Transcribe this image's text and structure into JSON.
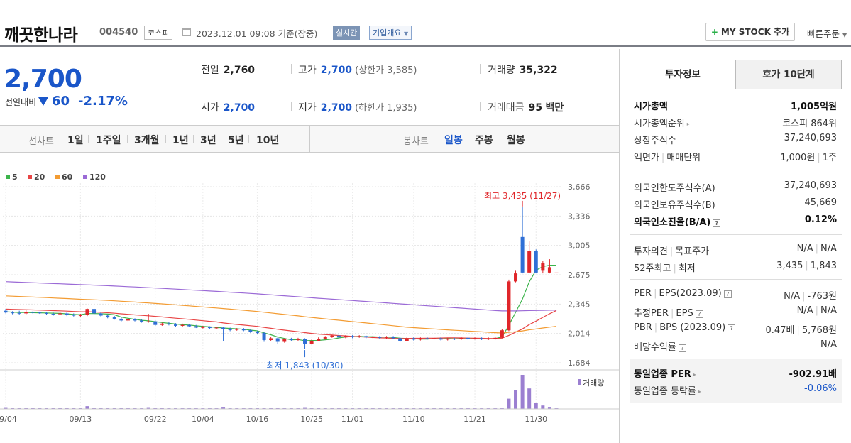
{
  "stock": {
    "name": "깨끗한나라",
    "code": "004540",
    "market": "코스피",
    "datetime": "2023.12.01 09:08",
    "basis": "기준(장중)",
    "realtime": "실시간",
    "corp_info": "기업개요",
    "my_stock": "MY STOCK 추가",
    "quick_order": "빠른주문"
  },
  "summary": {
    "price": "2,700",
    "change_label": "전일대비",
    "change_value": "60",
    "change_pct": "-2.17%",
    "prev_label": "전일",
    "prev": "2,760",
    "high_label": "고가",
    "high": "2,700",
    "upper_limit": "(상한가 3,585)",
    "volume_label": "거래량",
    "volume": "35,322",
    "open_label": "시가",
    "open": "2,700",
    "low_label": "저가",
    "low": "2,700",
    "lower_limit": "(하한가 1,935)",
    "amount_label": "거래대금",
    "amount": "95",
    "amount_unit": "백만"
  },
  "periods": {
    "line_label": "선차트",
    "line_items": [
      "1일",
      "1주일",
      "3개월",
      "1년",
      "3년",
      "5년",
      "10년"
    ],
    "candle_label": "봉차트",
    "candle_items": [
      "일봉",
      "주봉",
      "월봉"
    ],
    "candle_active": "일봉"
  },
  "chart_data": {
    "type": "candlestick",
    "legend": [
      {
        "name": "5",
        "color": "#3cb44b"
      },
      {
        "name": "20",
        "color": "#e84545"
      },
      {
        "name": "60",
        "color": "#f39c33"
      },
      {
        "name": "120",
        "color": "#9b6ad6"
      }
    ],
    "y_ticks": [
      "3,666",
      "3,336",
      "3,005",
      "2,675",
      "2,345",
      "2,014",
      "1,684"
    ],
    "ylim": [
      1684,
      3666
    ],
    "x_ticks": [
      "09/04",
      "09/13",
      "09/22",
      "10/04",
      "10/16",
      "10/25",
      "11/01",
      "11/10",
      "11/21",
      "11/30"
    ],
    "annotations": {
      "high_text": "최고 3,435 (11/27)",
      "low_text": "최저 1,843 (10/30)"
    },
    "volume_label": "거래량",
    "candles": [
      {
        "o": 2270,
        "c": 2250,
        "h": 2290,
        "l": 2240
      },
      {
        "o": 2250,
        "c": 2245,
        "h": 2265,
        "l": 2230
      },
      {
        "o": 2245,
        "c": 2240,
        "h": 2270,
        "l": 2225
      },
      {
        "o": 2240,
        "c": 2255,
        "h": 2275,
        "l": 2230
      },
      {
        "o": 2255,
        "c": 2250,
        "h": 2265,
        "l": 2235
      },
      {
        "o": 2250,
        "c": 2245,
        "h": 2260,
        "l": 2235
      },
      {
        "o": 2245,
        "c": 2235,
        "h": 2255,
        "l": 2225
      },
      {
        "o": 2235,
        "c": 2230,
        "h": 2250,
        "l": 2215
      },
      {
        "o": 2230,
        "c": 2240,
        "h": 2255,
        "l": 2220
      },
      {
        "o": 2240,
        "c": 2225,
        "h": 2250,
        "l": 2210
      },
      {
        "o": 2225,
        "c": 2215,
        "h": 2240,
        "l": 2205
      },
      {
        "o": 2215,
        "c": 2220,
        "h": 2235,
        "l": 2200
      },
      {
        "o": 2220,
        "c": 2290,
        "h": 2295,
        "l": 2210
      },
      {
        "o": 2290,
        "c": 2240,
        "h": 2295,
        "l": 2225
      },
      {
        "o": 2240,
        "c": 2215,
        "h": 2250,
        "l": 2205
      },
      {
        "o": 2215,
        "c": 2195,
        "h": 2230,
        "l": 2185
      },
      {
        "o": 2195,
        "c": 2180,
        "h": 2210,
        "l": 2170
      },
      {
        "o": 2180,
        "c": 2160,
        "h": 2195,
        "l": 2150
      },
      {
        "o": 2160,
        "c": 2175,
        "h": 2190,
        "l": 2150
      },
      {
        "o": 2175,
        "c": 2160,
        "h": 2185,
        "l": 2150
      },
      {
        "o": 2160,
        "c": 2140,
        "h": 2175,
        "l": 2135
      },
      {
        "o": 2140,
        "c": 2150,
        "h": 2235,
        "l": 2135
      },
      {
        "o": 2150,
        "c": 2110,
        "h": 2160,
        "l": 2100
      },
      {
        "o": 2110,
        "c": 2125,
        "h": 2135,
        "l": 2100
      },
      {
        "o": 2125,
        "c": 2115,
        "h": 2140,
        "l": 2105
      },
      {
        "o": 2115,
        "c": 2100,
        "h": 2130,
        "l": 2090
      },
      {
        "o": 2100,
        "c": 2110,
        "h": 2125,
        "l": 2090
      },
      {
        "o": 2110,
        "c": 2095,
        "h": 2120,
        "l": 2085
      },
      {
        "o": 2095,
        "c": 2080,
        "h": 2110,
        "l": 2075
      },
      {
        "o": 2080,
        "c": 2085,
        "h": 2100,
        "l": 2070
      },
      {
        "o": 2085,
        "c": 2075,
        "h": 2095,
        "l": 2065
      },
      {
        "o": 2075,
        "c": 2080,
        "h": 2090,
        "l": 2060
      },
      {
        "o": 2080,
        "c": 2060,
        "h": 2090,
        "l": 1930
      },
      {
        "o": 2060,
        "c": 2055,
        "h": 2080,
        "l": 2040
      },
      {
        "o": 2055,
        "c": 2065,
        "h": 2075,
        "l": 2045
      },
      {
        "o": 2065,
        "c": 2050,
        "h": 2075,
        "l": 2040
      },
      {
        "o": 2050,
        "c": 2030,
        "h": 2065,
        "l": 2020
      },
      {
        "o": 2030,
        "c": 2020,
        "h": 2045,
        "l": 2005
      },
      {
        "o": 2020,
        "c": 1940,
        "h": 2030,
        "l": 1920
      },
      {
        "o": 1940,
        "c": 1960,
        "h": 1975,
        "l": 1930
      },
      {
        "o": 1960,
        "c": 1920,
        "h": 1970,
        "l": 1900
      },
      {
        "o": 1920,
        "c": 1950,
        "h": 1960,
        "l": 1910
      },
      {
        "o": 1950,
        "c": 1940,
        "h": 1965,
        "l": 1925
      },
      {
        "o": 1940,
        "c": 1955,
        "h": 1965,
        "l": 1930
      },
      {
        "o": 1955,
        "c": 1900,
        "h": 1960,
        "l": 1843
      },
      {
        "o": 1900,
        "c": 1930,
        "h": 1945,
        "l": 1890
      },
      {
        "o": 1930,
        "c": 1955,
        "h": 1970,
        "l": 1925
      },
      {
        "o": 1955,
        "c": 1975,
        "h": 1985,
        "l": 1945
      },
      {
        "o": 1975,
        "c": 1990,
        "h": 2000,
        "l": 1965
      },
      {
        "o": 1990,
        "c": 1970,
        "h": 2020,
        "l": 1960
      },
      {
        "o": 1970,
        "c": 1985,
        "h": 1995,
        "l": 1960
      },
      {
        "o": 1985,
        "c": 1975,
        "h": 1995,
        "l": 1960
      },
      {
        "o": 1975,
        "c": 1985,
        "h": 1995,
        "l": 1965
      },
      {
        "o": 1985,
        "c": 1970,
        "h": 1990,
        "l": 1960
      },
      {
        "o": 1970,
        "c": 1975,
        "h": 1985,
        "l": 1960
      },
      {
        "o": 1975,
        "c": 1965,
        "h": 1985,
        "l": 1955
      },
      {
        "o": 1965,
        "c": 1975,
        "h": 1985,
        "l": 1955
      },
      {
        "o": 1975,
        "c": 1960,
        "h": 1985,
        "l": 1950
      },
      {
        "o": 1960,
        "c": 1930,
        "h": 1970,
        "l": 1920
      },
      {
        "o": 1930,
        "c": 1960,
        "h": 1970,
        "l": 1925
      },
      {
        "o": 1960,
        "c": 1945,
        "h": 1970,
        "l": 1935
      },
      {
        "o": 1945,
        "c": 1960,
        "h": 1970,
        "l": 1935
      },
      {
        "o": 1960,
        "c": 1955,
        "h": 1970,
        "l": 1945
      },
      {
        "o": 1955,
        "c": 1960,
        "h": 1970,
        "l": 1945
      },
      {
        "o": 1960,
        "c": 1945,
        "h": 1970,
        "l": 1935
      },
      {
        "o": 1945,
        "c": 1955,
        "h": 1965,
        "l": 1935
      },
      {
        "o": 1955,
        "c": 1950,
        "h": 1965,
        "l": 1940
      },
      {
        "o": 1950,
        "c": 1965,
        "h": 1975,
        "l": 1940
      },
      {
        "o": 1965,
        "c": 1950,
        "h": 1975,
        "l": 1940
      },
      {
        "o": 1950,
        "c": 1960,
        "h": 1970,
        "l": 1945
      },
      {
        "o": 1960,
        "c": 1950,
        "h": 1970,
        "l": 1940
      },
      {
        "o": 1950,
        "c": 1955,
        "h": 1970,
        "l": 1940
      },
      {
        "o": 1955,
        "c": 1965,
        "h": 1980,
        "l": 1945
      },
      {
        "o": 1965,
        "c": 2050,
        "h": 2060,
        "l": 1960
      },
      {
        "o": 2050,
        "c": 2600,
        "h": 2620,
        "l": 2040
      },
      {
        "o": 2600,
        "c": 2690,
        "h": 2720,
        "l": 2590
      },
      {
        "o": 3100,
        "c": 2700,
        "h": 3435,
        "l": 2690
      },
      {
        "o": 2700,
        "c": 2940,
        "h": 3050,
        "l": 2690
      },
      {
        "o": 2940,
        "c": 2700,
        "h": 2960,
        "l": 2690
      },
      {
        "o": 2720,
        "c": 2810,
        "h": 2830,
        "l": 2690
      },
      {
        "o": 2700,
        "c": 2760,
        "h": 2850,
        "l": 2690
      },
      {
        "o": 2700,
        "c": 2700,
        "h": 2700,
        "l": 2700
      }
    ],
    "volumes": [
      5,
      4,
      4,
      3,
      4,
      3,
      3,
      4,
      3,
      4,
      3,
      3,
      8,
      4,
      3,
      3,
      3,
      3,
      2,
      2,
      2,
      5,
      3,
      3,
      2,
      2,
      2,
      2,
      2,
      2,
      2,
      2,
      6,
      2,
      2,
      2,
      2,
      3,
      4,
      3,
      3,
      2,
      2,
      2,
      5,
      3,
      3,
      3,
      2,
      2,
      2,
      2,
      2,
      2,
      2,
      2,
      2,
      2,
      2,
      2,
      2,
      2,
      2,
      2,
      2,
      2,
      2,
      2,
      2,
      2,
      2,
      2,
      2,
      3,
      30,
      55,
      100,
      60,
      18,
      10,
      6,
      2
    ]
  },
  "right": {
    "tab1": "투자정보",
    "tab2": "호가 10단계",
    "market_cap_label": "시가총액",
    "market_cap": "1,005억원",
    "rank_label": "시가총액순위",
    "rank": "코스피 864위",
    "shares_label": "상장주식수",
    "shares": "37,240,693",
    "face_label": "액면가",
    "unit_label": "매매단위",
    "face": "1,000원",
    "unit": "1주",
    "foreign_limit_label": "외국인한도주식수(A)",
    "foreign_limit": "37,240,693",
    "foreign_hold_label": "외국인보유주식수(B)",
    "foreign_hold": "45,669",
    "foreign_rate_label": "외국인소진율(B/A)",
    "foreign_rate": "0.12%",
    "opinion_label": "투자의견",
    "target_label": "목표주가",
    "opinion": "N/A",
    "target": "N/A",
    "w52_label": "52주최고",
    "w52_low_label": "최저",
    "w52_high": "3,435",
    "w52_low": "1,843",
    "per_label": "PER",
    "eps_label": "EPS(2023.09)",
    "per": "N/A",
    "eps": "-763원",
    "eper_label": "추정PER",
    "eeps_label": "EPS",
    "eper": "N/A",
    "eeps": "N/A",
    "pbr_label": "PBR",
    "bps_label": "BPS (2023.09)",
    "pbr": "0.47배",
    "bps": "5,768원",
    "div_label": "배당수익률",
    "div": "N/A",
    "ind_per_label": "동일업종 PER",
    "ind_per": "-902.91배",
    "ind_rate_label": "동일업종 등락률",
    "ind_rate": "-0.06%"
  }
}
